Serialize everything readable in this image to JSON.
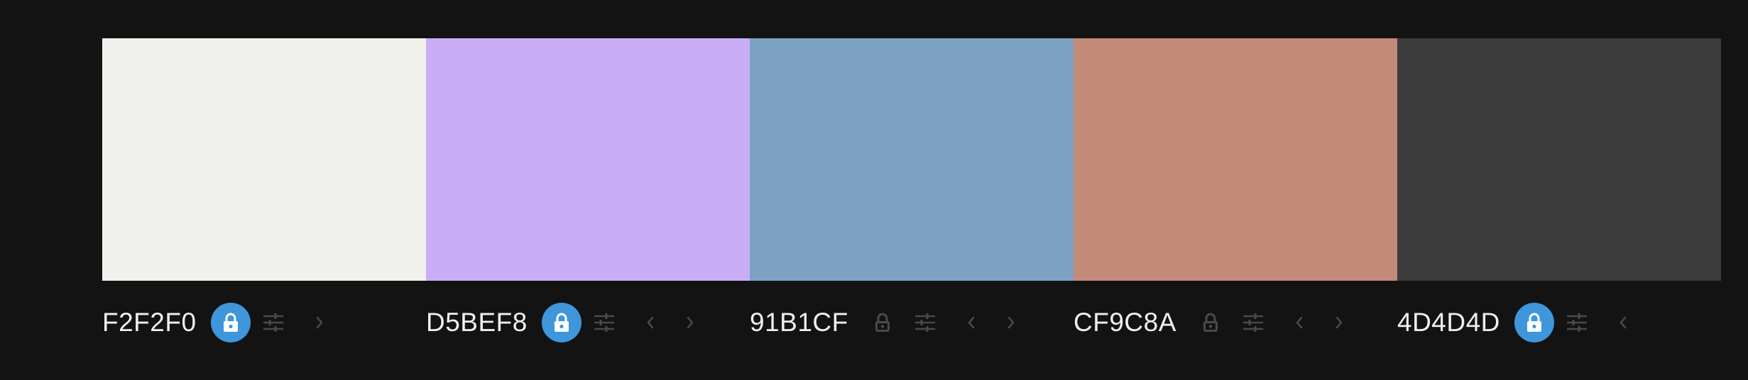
{
  "colors": {
    "background": "#131313",
    "accent": "#3f96db",
    "icon_muted": "#4a4a4a"
  },
  "palette": [
    {
      "hex": "F2F2F0",
      "color": "#F0F0EC",
      "locked": true,
      "has_prev": false,
      "has_next": true
    },
    {
      "hex": "D5BEF8",
      "color": "#CAADF7",
      "locked": true,
      "has_prev": true,
      "has_next": true
    },
    {
      "hex": "91B1CF",
      "color": "#7FA2C4",
      "locked": false,
      "has_prev": true,
      "has_next": true
    },
    {
      "hex": "CF9C8A",
      "color": "#C38A79",
      "locked": false,
      "has_prev": true,
      "has_next": true
    },
    {
      "hex": "4D4D4D",
      "color": "#3C3C3C",
      "locked": true,
      "has_prev": true,
      "has_next": false
    }
  ],
  "icons": {
    "lock": "lock-icon",
    "adjust": "sliders-icon",
    "prev": "chevron-left-icon",
    "next": "chevron-right-icon"
  }
}
